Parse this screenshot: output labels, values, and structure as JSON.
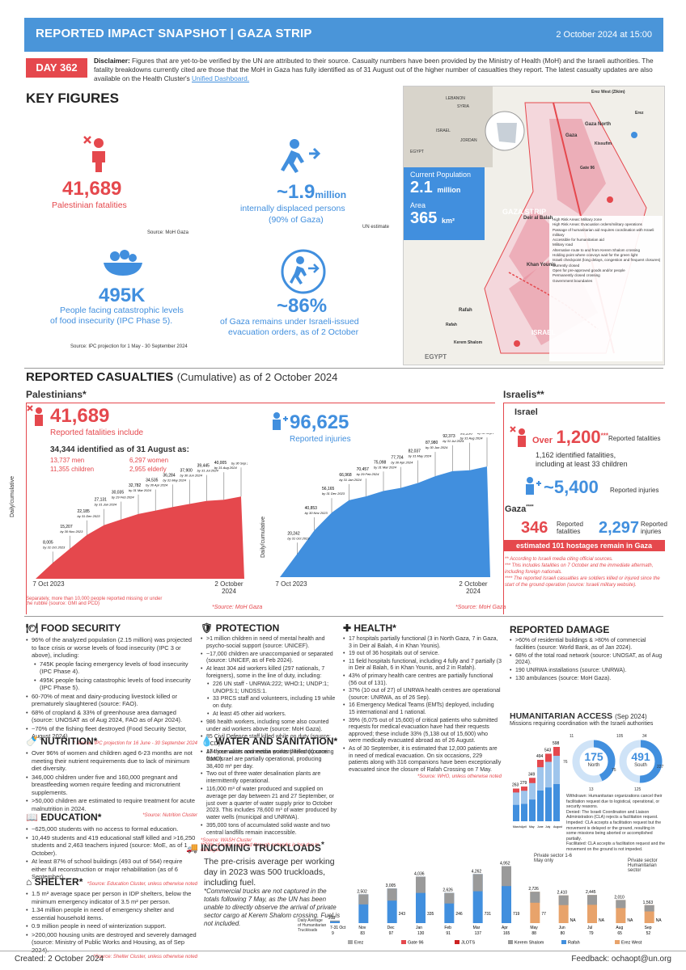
{
  "header": {
    "title": "REPORTED IMPACT SNAPSHOT | GAZA STRIP",
    "date": "2 October 2024 at 15:00"
  },
  "day": "DAY 362",
  "disclaimer": {
    "label": "Disclaimer:",
    "text": "Figures that are yet-to-be verified by the UN are attributed to their source. Casualty numbers have been provided by the Ministry of Health (MoH) and the Israeli authorities. The fatality breakdowns currently cited are those that the MoH in Gaza has fully identified as of 31 August out of the higher number of casualties they report. The latest casualty updates are also available on the Health Cluster's",
    "link": "Unified Dashboard."
  },
  "key_figures": {
    "title": "KEY FIGURES",
    "fatalities": {
      "value": "41,689",
      "label": "Palestinian fatalities",
      "source": "Source: MoH Gaza"
    },
    "idp": {
      "value": "~1.9",
      "unit": "million",
      "label1": "internally displaced persons",
      "label2": "(90% of Gaza)",
      "source": "UN estimate"
    },
    "food": {
      "value": "495K",
      "label1": "People facing catastrophic levels",
      "label2": "of food insecurity (IPC Phase 5).",
      "source": "Source: IPC projection for 1 May -  30 September 2024"
    },
    "evac": {
      "value": "~86%",
      "label1": "of Gaza remains under Israeli-issued",
      "label2": "evacuation orders, as of 2 October"
    }
  },
  "map": {
    "pop_label": "Current Population",
    "pop_value": "2.1",
    "pop_unit": "million",
    "area_label": "Area",
    "area_value": "365",
    "area_unit": "km²",
    "places": [
      "LEBANON",
      "SYRIA",
      "ISRAEL",
      "JORDAN",
      "EGYPT",
      "Gaza North",
      "Gaza",
      "Deir al Balah",
      "Khan Younis",
      "Rafah",
      "GAZA STRIP",
      "ISRAEL",
      "EGYPT",
      "Erez West (Zikim)",
      "Erez",
      "Gate 96",
      "Kissufim",
      "Kerem Shalom",
      "Rafah"
    ],
    "legend": [
      "High Risk Areas: Military zone",
      "High Risk Areas: Evacuation orders/military operations",
      "Passage of humanitarian aid requires coordination with Israeli military",
      "Accessible for humanitarian aid",
      "Military road",
      "Alternative route to and from Kerem Shalom crossing",
      "Holding point where convoys wait for the green light",
      "Israeli checkpoint (long delays, congestion and frequent closures)",
      "Currently closed",
      "Open for pre-approved goods and/or people",
      "Permanently closed crossing",
      "Government boundaries"
    ]
  },
  "casualties": {
    "title": "REPORTED CASUALTIES",
    "subtitle": "(Cumulative) as of 2 October 2024",
    "pal_title": "Palestinians*",
    "pal_fat": {
      "value": "41,689",
      "label": "Reported fatalities include",
      "identified": "34,344 identified as of 31 August as:",
      "men": "13,737 men",
      "women": "6,297 women",
      "children": "11,355 children",
      "elderly": "2,955 elderly"
    },
    "injuries": {
      "value": "96,625",
      "label": "Reported injuries"
    },
    "chart_ylabel": "Daily/cumulative",
    "chart_x_start": "7 Oct 2023",
    "chart_x_end": "2 October 2024",
    "missing_note": "Separately, more than 10,000 people reported missing or under the rubble (source: GMI and PCD)",
    "source": "*Source: MoH Gaza",
    "isr_title": "Israelis**",
    "isr_sub": "Israel",
    "isr_fat": {
      "over": "Over",
      "value": "1,200",
      "sup": "***",
      "label": "Reported fatalities",
      "detail1": "1,162 identified fatalities,",
      "detail2": "including at least 33 children"
    },
    "isr_inj": {
      "value": "~5,400",
      "label": "Reported injuries"
    },
    "gaza_sub": "Gaza",
    "gaza_sup": "****",
    "gaza_fat": {
      "value": "346",
      "label": "Reported fatalities"
    },
    "gaza_inj": {
      "value": "2,297",
      "label": "Reported injuries"
    },
    "hostages": "estimated 101 hostages remain in Gaza",
    "notes": [
      "** According to Israeli media citing official sources.",
      "*** This includes fatalities on 7 October and the immediate aftermath, including foreign nationals.",
      "**** The reported Israeli casualties are soldiers killed or injured since the start of the ground operation (source: Israeli military website)."
    ]
  },
  "chart_data": [
    {
      "type": "area",
      "series": [
        {
          "name": "Reported fatalities",
          "values": [
            8005,
            15207,
            22185,
            27131,
            30035,
            32782,
            34535,
            36284,
            37900,
            39445,
            40005,
            41615
          ]
        }
      ],
      "x": [
        "by 31 Oct 2023",
        "by 30 Nov 2023",
        "by 31 Dec 2023",
        "by 31 Jan 2024",
        "by 29 Feb 2024",
        "by 31 Mar 2024",
        "by 30 Apr 2024",
        "by 31 May 2024",
        "by 30 Jun 2024",
        "by 31 Jul 2024",
        "by 31 Aug 2024",
        "by 30 Sep 2024"
      ]
    },
    {
      "type": "area",
      "series": [
        {
          "name": "Reported injuries",
          "values": [
            20242,
            40853,
            56165,
            66968,
            70457,
            75098,
            77704,
            82037,
            87980,
            92373,
            93156,
            96359
          ]
        }
      ],
      "x": [
        "by 31 Oct 2023",
        "by 30 Nov 2023",
        "by 31 Dec 2023",
        "by 31 Jan 2024",
        "by 29 Feb 2024",
        "by 31 Mar 2024",
        "by 30 Apr 2024",
        "by 31 May 2024",
        "by 30 Jun 2024",
        "by 31 Jul 2024",
        "by 31 Aug 2024",
        "by 30 Sep 2024"
      ]
    },
    {
      "type": "bar",
      "title": "Daily Average of Humanitarian Truckloads",
      "categories": [
        "7-31 Oct",
        "Nov",
        "Dec",
        "Jan",
        "Feb",
        "Mar",
        "Apr",
        "May",
        "Jun",
        "Jul",
        "Aug",
        "Sep"
      ],
      "series": [
        {
          "name": "total",
          "values": [
            218,
            2502,
            3005,
            4036,
            2626,
            4262,
            4952,
            2726,
            2410,
            2445,
            2010,
            1563
          ]
        },
        {
          "name": "daily avg",
          "values": [
            9,
            83,
            97,
            130,
            91,
            137,
            165,
            88,
            80,
            79,
            65,
            52
          ]
        }
      ],
      "legend": [
        "Erez",
        "Gate 96",
        "JLOTS",
        "Kerem Shalom",
        "Rafah",
        "Erez West"
      ]
    },
    {
      "type": "bar",
      "title": "Missions requiring coordination",
      "categories": [
        "March",
        "April",
        "May",
        "June",
        "July",
        "August"
      ],
      "values": [
        263,
        279,
        349,
        494,
        543,
        598
      ]
    }
  ],
  "food_security": {
    "title": "FOOD SECURITY",
    "items": [
      "96% of the analyzed population (2.15 million) was projected to face crisis or worse levels of food insecurity (IPC 3 or above), including:",
      "745K people facing emergency levels of food insecurity (IPC Phase 4).",
      "495K people facing catastrophic levels of food insecurity (IPC Phase 5).",
      "60-70% of meat and dairy-producing livestock killed or prematurely slaughtered (source: FAO).",
      "68% of cropland & 33% of greenhouse area damaged (source: UNOSAT as of Aug 2024, FAO as of Apr 2024).",
      "~70% of the fishing fleet destroyed (Food Security Sector, August 2024)"
    ],
    "source": "* Source: IPC projection for 16 June - 30 September 2024"
  },
  "nutrition": {
    "title": "NUTRITION*",
    "items": [
      "Over 96% of women and children aged 6-23 months are not meeting their nutrient requirements due to lack of minimum diet diversity.",
      "346,000 children under five and 160,000 pregnant and breastfeeding women require feeding and micronutrient supplements.",
      ">50,000 children are estimated to require treatment for acute malnutrition in 2024."
    ],
    "source": "*Source: Nutrition Cluster"
  },
  "education": {
    "title": "EDUCATION*",
    "items": [
      "~625,000 students with no access to formal education.",
      "10,449 students and 419 educational staff killed and >16,250 students and 2,463 teachers injured (source: MoE, as of 1 October).",
      "At least 87% of school buildings (493 out of 564) require either full reconstruction or major rehabilitation (as of 6 September)."
    ],
    "source": "*Source: Education Cluster, unless otherwise noted"
  },
  "shelter": {
    "title": "SHELTER*",
    "items": [
      "1.5 m² average space per person in IDP shelters, below the minimum emergency indicator of 3.5 m² per person.",
      "1.34 million people in need of emergency shelter and essential household items.",
      "0.9 million people in need of winterization support.",
      ">200,000 housing units are destroyed and severely damaged (source: Ministry of Public Works and Housing, as of Sep 2024)."
    ],
    "source": "*Source: Shelter Cluster, unless otherwise noted"
  },
  "protection": {
    "title": "PROTECTION",
    "items": [
      ">1 million children in need of mental health and psycho-social support (source: UNICEF).",
      "~17,000 children are unaccompanied or separated (source: UNICEF, as of Feb 2024).",
      "At least 304 aid workers killed (297 nationals, 7 foreigners), some in the line of duty, including:",
      "226 UN staff - UNRWA:222; WHO:1; UNDP:1; UNOPS:1; UNDSS:1.",
      "33 PRCS staff and volunteers, including 19 while on duty.",
      "At least 45 other aid workers.",
      "986 health workers, including some also counted under aid workers above (source: MoH Gaza).",
      "85 Civil Defence staff killed while on duty (source: PCD).",
      "174 journalists and media workers killed (source: GMO)."
    ]
  },
  "wash": {
    "title": "WATER AND SANITATION*",
    "items": [
      "All three water connection points (Mekorot) coming from Israel are partially operational, producing 38,400 m³ per day.",
      "Two out of three water desalination plants are intermittently operational.",
      "116,000 m³ of water produced and supplied on average per day between 21 and 27 September, or just over a quarter of water supply prior to October 2023. This includes 78,600 m³ of water produced by water wells (municipal and UNRWA).",
      "395,000 tons of accumulated solid waste and two central landfills remain inaccessible."
    ],
    "source": "*Source: WASH Cluster",
    "note": "**70% of water supplied through networks is lost due to damages."
  },
  "health": {
    "title": "HEALTH*",
    "items": [
      "17 hospitals partially functional (3 in North Gaza, 7 in Gaza, 3 in Deir al Balah, 4 in Khan Younis).",
      "19 out of 36 hospitals out of service.",
      "11 field hospitals functional, including 4 fully and 7 partially (3 in Deir al Balah, 6 in Khan Younis, and 2 in Rafah).",
      "43% of primary health care centres are partially functional (56 out of 131).",
      "37% (10 out of 27) of UNRWA health centres are operational (source: UNRWA, as of 26 Sep).",
      "16 Emergency Medical Teams (EMTs) deployed, including 15 international and 1 national.",
      "39% (6,075 out of 15,600) of critical patients who submitted requests for medical evacuation have had their requests approved; these include 33% (5,138 out of 15,600) who were medically evacuated abroad as of 26 August.",
      "As of 30 September, it is estimated that 12,000 patients are in need of medical evacuation. On six occasions, 229 patients along with 316 companions have been exceptionally evacuated since the closure of Rafah Crossing on 7 May."
    ],
    "source": "*Source: WHO, unless otherwise noted"
  },
  "damage": {
    "title": "REPORTED DAMAGE",
    "items": [
      ">60% of residential buildings & >80% of commercial facilities (source: World Bank, as of Jan 2024).",
      "68% of the total road network (source: UNOSAT, as of Aug 2024).",
      "190 UNRWA installations (source: UNRWA).",
      "130 ambulances (source: MoH Gaza)."
    ]
  },
  "humanitarian": {
    "title": "HUMANITARIAN ACCESS",
    "title_date": "(Sep 2024)",
    "subtitle": "Missions requiring coordination with the Israeli authorities",
    "north": {
      "value": "175",
      "label": "North",
      "parts": [
        "11",
        "76",
        "13",
        "75"
      ]
    },
    "south": {
      "value": "491",
      "label": "South",
      "parts": [
        "105",
        "34",
        "227",
        "125"
      ]
    },
    "months": [
      "March",
      "April",
      "May",
      "June",
      "July",
      "August"
    ],
    "definitions": [
      "Withdrawn: Humanitarian organizations cancel their facilitation request due to logistical, operational, or security reasons.",
      "Denied: The Israeli Coordination and Liaison Administration (CLA) rejects a facilitation request.",
      "Impeded: CLA accepts a facilitation request but the movement is delayed or the ground, resulting in some missions being aborted or accomplished partially.",
      "Facilitated: CLA accepts a facilitation request and the movement on the ground is not impeded."
    ]
  },
  "trucks": {
    "title": "INCOMING TRUCKLOADS",
    "title_sup": "*",
    "prewar": "The pre-crisis average per working day in 2023 was 500 truckloads, including fuel.",
    "note": "*Commercial trucks are not captured in the totals following 7 May, as the UN has been unable to directly observe the arrival of private sector cargo at Kerem Shalom crossing. Fuel is not included.",
    "private1": "Private sector 1-6 May only",
    "private2": "Private sector Humanitarian sector",
    "na": "NA",
    "axis_label": "Daily Average of Humanitarian Truckloads",
    "extra_labels": [
      "243",
      "335",
      "246",
      "731",
      "719",
      "77"
    ]
  },
  "footer": {
    "created": "Created: 2 October 2024",
    "feedback": "Feedback: ochaopt@un.org"
  }
}
